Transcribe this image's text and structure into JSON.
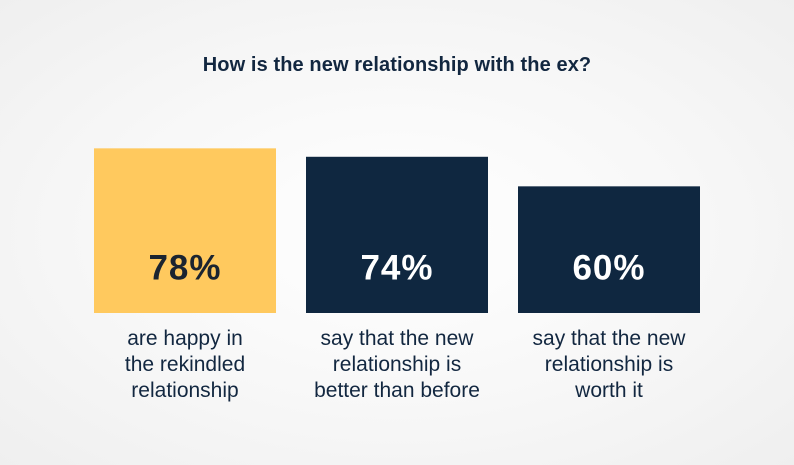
{
  "chart_data": {
    "type": "bar",
    "title": "How is the new relationship with the ex?",
    "categories": [
      "are happy in the rekindled relationship",
      "say that the new relationship is better than before",
      "say that the new relationship is worth it"
    ],
    "values": [
      78,
      74,
      60
    ],
    "value_labels": [
      "78%",
      "74%",
      "60%"
    ],
    "label_lines": [
      [
        "are happy in",
        "the rekindled",
        "relationship"
      ],
      [
        "say that the new",
        "relationship is",
        "better than before"
      ],
      [
        "say that the new",
        "relationship is",
        "worth it"
      ]
    ],
    "bar_colors": [
      "#ffc95e",
      "#0f2740",
      "#0f2740"
    ],
    "value_text_colors": [
      "#1b2430",
      "#ffffff",
      "#ffffff"
    ],
    "ylim": [
      0,
      100
    ],
    "grid": false
  },
  "colors": {
    "title": "#122740",
    "label": "#122740",
    "background": "#f5f5f5"
  }
}
